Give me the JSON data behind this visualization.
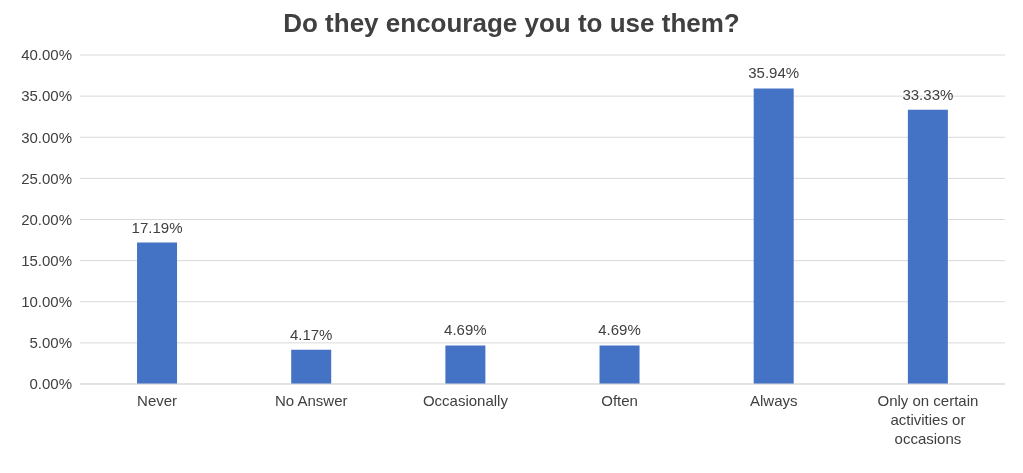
{
  "chart_data": {
    "type": "bar",
    "title": "Do they encourage you to use them?",
    "categories": [
      "Never",
      "No Answer",
      "Occasionally",
      "Often",
      "Always",
      "Only on certain activities or occasions"
    ],
    "values": [
      17.19,
      4.17,
      4.69,
      4.69,
      35.94,
      33.33
    ],
    "value_labels": [
      "17.19%",
      "4.17%",
      "4.69%",
      "4.69%",
      "35.94%",
      "33.33%"
    ],
    "color": "#4472c4",
    "ylim": [
      0,
      40
    ],
    "yticks": [
      {
        "value": 0,
        "label": "0.00%"
      },
      {
        "value": 5,
        "label": "5.00%"
      },
      {
        "value": 10,
        "label": "10.00%"
      },
      {
        "value": 15,
        "label": "15.00%"
      },
      {
        "value": 20,
        "label": "20.00%"
      },
      {
        "value": 25,
        "label": "25.00%"
      },
      {
        "value": 30,
        "label": "30.00%"
      },
      {
        "value": 35,
        "label": "35.00%"
      },
      {
        "value": 40,
        "label": "40.00%"
      }
    ],
    "grid": "y"
  }
}
